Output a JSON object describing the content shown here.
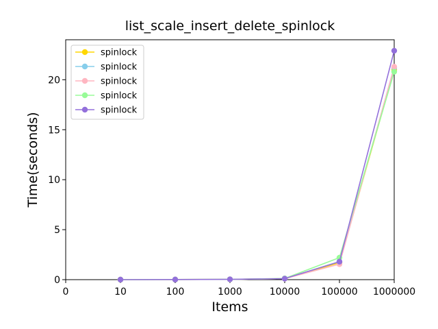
{
  "chart_data": {
    "type": "line",
    "title": "list_scale_insert_delete_spinlock",
    "xlabel": "Items",
    "ylabel": "Time(seconds)",
    "x_tick_labels": [
      "0",
      "10",
      "100",
      "1000",
      "10000",
      "100000",
      "1000000"
    ],
    "y_tick_labels": [
      "0",
      "5",
      "10",
      "15",
      "20"
    ],
    "categories": [
      "10",
      "100",
      "1000",
      "10000",
      "100000",
      "1000000"
    ],
    "ylim": [
      0,
      24
    ],
    "grid": false,
    "legend_position": "upper-left",
    "series": [
      {
        "name": "spinlock",
        "color": "#FFD700",
        "values": [
          0.0,
          0.01,
          0.03,
          0.1,
          1.7,
          21.0
        ]
      },
      {
        "name": "spinlock",
        "color": "#87CEEB",
        "values": [
          0.0,
          0.01,
          0.03,
          0.1,
          1.8,
          21.2
        ]
      },
      {
        "name": "spinlock",
        "color": "#FFB6C1",
        "values": [
          0.0,
          0.01,
          0.03,
          0.1,
          1.55,
          21.3
        ]
      },
      {
        "name": "spinlock",
        "color": "#98FB98",
        "values": [
          0.0,
          0.01,
          0.03,
          0.12,
          2.2,
          20.8
        ]
      },
      {
        "name": "spinlock",
        "color": "#9370DB",
        "values": [
          0.0,
          0.01,
          0.03,
          0.1,
          1.8,
          22.9
        ]
      }
    ]
  }
}
